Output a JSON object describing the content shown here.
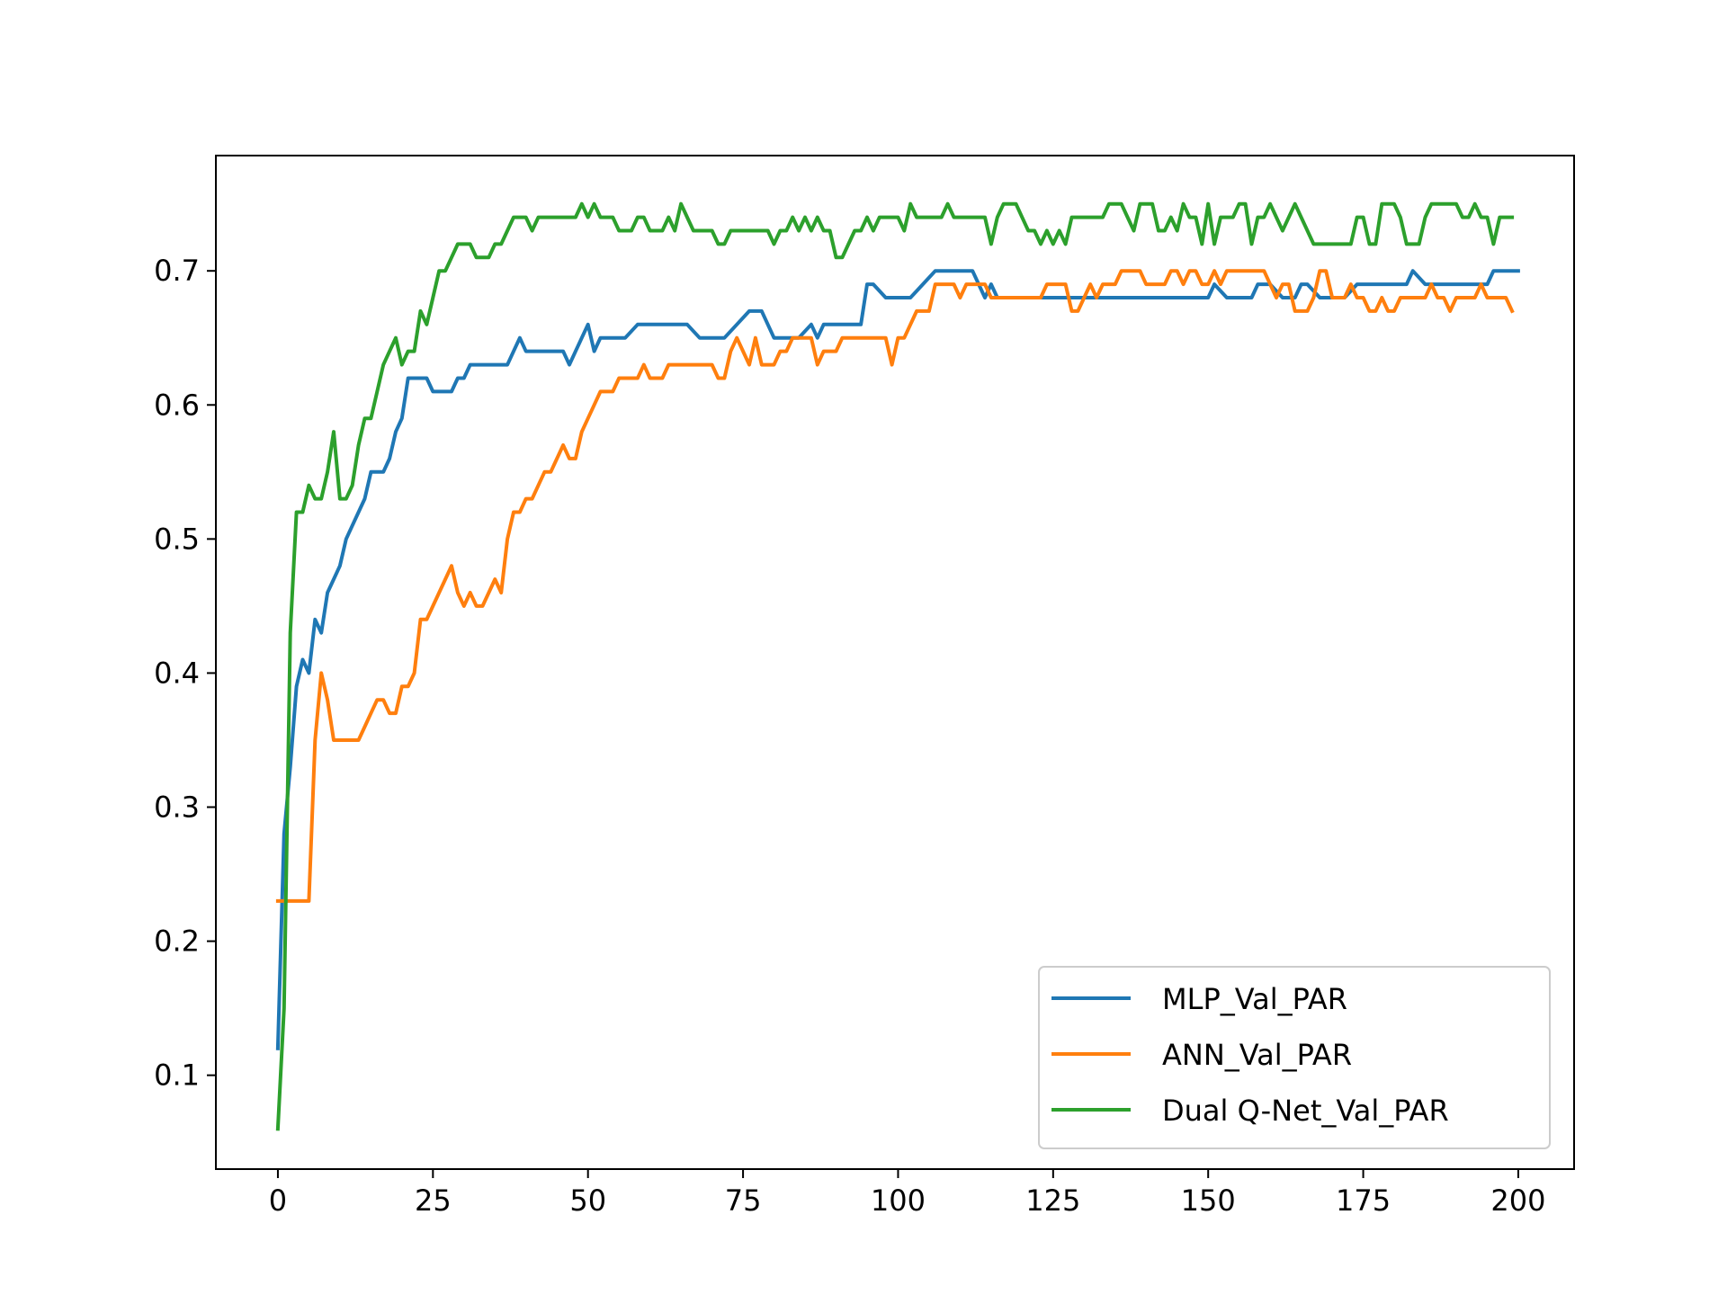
{
  "chart_data": {
    "type": "line",
    "title": "",
    "xlabel": "",
    "ylabel": "",
    "xlim": [
      -10,
      209
    ],
    "ylim": [
      0.03,
      0.786
    ],
    "xticks": [
      0,
      25,
      50,
      75,
      100,
      125,
      150,
      175,
      200
    ],
    "yticks": [
      0.1,
      0.2,
      0.3,
      0.4,
      0.5,
      0.6,
      0.7
    ],
    "grid": false,
    "legend_position": "lower-right",
    "series": [
      {
        "name": "MLP_Val_PAR",
        "color": "#1f77b4",
        "x": [
          0,
          1,
          2,
          3,
          4,
          5,
          6,
          7,
          8,
          9,
          10,
          11,
          12,
          13,
          14,
          15,
          16,
          17,
          18,
          19,
          20,
          21,
          22,
          23,
          24,
          25,
          26,
          27,
          28,
          29,
          30,
          31,
          32,
          33,
          34,
          35,
          36,
          37,
          38,
          39,
          40,
          42,
          44,
          46,
          47,
          48,
          49,
          50,
          51,
          52,
          54,
          56,
          58,
          60,
          62,
          64,
          66,
          68,
          70,
          72,
          74,
          76,
          78,
          80,
          82,
          84,
          86,
          87,
          88,
          90,
          92,
          94,
          95,
          96,
          98,
          100,
          102,
          104,
          106,
          108,
          110,
          112,
          113,
          114,
          115,
          116,
          118,
          120,
          125,
          130,
          135,
          140,
          145,
          150,
          151,
          153,
          155,
          157,
          158,
          160,
          162,
          164,
          165,
          166,
          168,
          170,
          172,
          174,
          176,
          178,
          180,
          182,
          183,
          185,
          190,
          195,
          196,
          200
        ],
        "y": [
          0.12,
          0.28,
          0.33,
          0.39,
          0.41,
          0.4,
          0.44,
          0.43,
          0.46,
          0.47,
          0.48,
          0.5,
          0.51,
          0.52,
          0.53,
          0.55,
          0.55,
          0.55,
          0.56,
          0.58,
          0.59,
          0.62,
          0.62,
          0.62,
          0.62,
          0.61,
          0.61,
          0.61,
          0.61,
          0.62,
          0.62,
          0.63,
          0.63,
          0.63,
          0.63,
          0.63,
          0.63,
          0.63,
          0.64,
          0.65,
          0.64,
          0.64,
          0.64,
          0.64,
          0.63,
          0.64,
          0.65,
          0.66,
          0.64,
          0.65,
          0.65,
          0.65,
          0.66,
          0.66,
          0.66,
          0.66,
          0.66,
          0.65,
          0.65,
          0.65,
          0.66,
          0.67,
          0.67,
          0.65,
          0.65,
          0.65,
          0.66,
          0.65,
          0.66,
          0.66,
          0.66,
          0.66,
          0.69,
          0.69,
          0.68,
          0.68,
          0.68,
          0.69,
          0.7,
          0.7,
          0.7,
          0.7,
          0.69,
          0.68,
          0.69,
          0.68,
          0.68,
          0.68,
          0.68,
          0.68,
          0.68,
          0.68,
          0.68,
          0.68,
          0.69,
          0.68,
          0.68,
          0.68,
          0.69,
          0.69,
          0.68,
          0.68,
          0.69,
          0.69,
          0.68,
          0.68,
          0.68,
          0.69,
          0.69,
          0.69,
          0.69,
          0.69,
          0.7,
          0.69,
          0.69,
          0.69,
          0.7,
          0.7
        ]
      },
      {
        "name": "ANN_Val_PAR",
        "color": "#ff7f0e",
        "x": [
          0,
          1,
          2,
          3,
          4,
          5,
          6,
          7,
          8,
          9,
          10,
          11,
          12,
          13,
          14,
          15,
          16,
          17,
          18,
          19,
          20,
          21,
          22,
          23,
          24,
          25,
          26,
          27,
          28,
          29,
          30,
          31,
          32,
          33,
          34,
          35,
          36,
          37,
          38,
          39,
          40,
          41,
          42,
          43,
          44,
          45,
          46,
          47,
          48,
          49,
          50,
          51,
          52,
          53,
          54,
          55,
          56,
          57,
          58,
          59,
          60,
          61,
          62,
          63,
          64,
          65,
          66,
          67,
          68,
          69,
          70,
          71,
          72,
          73,
          74,
          75,
          76,
          77,
          78,
          79,
          80,
          81,
          82,
          83,
          84,
          85,
          86,
          87,
          88,
          89,
          90,
          91,
          92,
          93,
          94,
          95,
          96,
          97,
          98,
          99,
          100,
          101,
          102,
          103,
          104,
          105,
          106,
          107,
          108,
          109,
          110,
          111,
          112,
          113,
          114,
          115,
          116,
          117,
          118,
          119,
          120,
          121,
          122,
          123,
          124,
          125,
          126,
          127,
          128,
          129,
          130,
          131,
          132,
          133,
          134,
          135,
          136,
          137,
          138,
          139,
          140,
          141,
          142,
          143,
          144,
          145,
          146,
          147,
          148,
          149,
          150,
          151,
          152,
          153,
          154,
          155,
          156,
          157,
          158,
          159,
          160,
          161,
          162,
          163,
          164,
          165,
          166,
          167,
          168,
          169,
          170,
          171,
          172,
          173,
          174,
          175,
          176,
          177,
          178,
          179,
          180,
          181,
          182,
          183,
          184,
          185,
          186,
          187,
          188,
          189,
          190,
          191,
          192,
          193,
          194,
          195,
          196,
          197,
          198,
          199
        ],
        "y": [
          0.23,
          0.23,
          0.23,
          0.23,
          0.23,
          0.23,
          0.35,
          0.4,
          0.38,
          0.35,
          0.35,
          0.35,
          0.35,
          0.35,
          0.36,
          0.37,
          0.38,
          0.38,
          0.37,
          0.37,
          0.39,
          0.39,
          0.4,
          0.44,
          0.44,
          0.45,
          0.46,
          0.47,
          0.48,
          0.46,
          0.45,
          0.46,
          0.45,
          0.45,
          0.46,
          0.47,
          0.46,
          0.5,
          0.52,
          0.52,
          0.53,
          0.53,
          0.54,
          0.55,
          0.55,
          0.56,
          0.57,
          0.56,
          0.56,
          0.58,
          0.59,
          0.6,
          0.61,
          0.61,
          0.61,
          0.62,
          0.62,
          0.62,
          0.62,
          0.63,
          0.62,
          0.62,
          0.62,
          0.63,
          0.63,
          0.63,
          0.63,
          0.63,
          0.63,
          0.63,
          0.63,
          0.62,
          0.62,
          0.64,
          0.65,
          0.64,
          0.63,
          0.65,
          0.63,
          0.63,
          0.63,
          0.64,
          0.64,
          0.65,
          0.65,
          0.65,
          0.65,
          0.63,
          0.64,
          0.64,
          0.64,
          0.65,
          0.65,
          0.65,
          0.65,
          0.65,
          0.65,
          0.65,
          0.65,
          0.63,
          0.65,
          0.65,
          0.66,
          0.67,
          0.67,
          0.67,
          0.69,
          0.69,
          0.69,
          0.69,
          0.68,
          0.69,
          0.69,
          0.69,
          0.69,
          0.68,
          0.68,
          0.68,
          0.68,
          0.68,
          0.68,
          0.68,
          0.68,
          0.68,
          0.69,
          0.69,
          0.69,
          0.69,
          0.67,
          0.67,
          0.68,
          0.69,
          0.68,
          0.69,
          0.69,
          0.69,
          0.7,
          0.7,
          0.7,
          0.7,
          0.69,
          0.69,
          0.69,
          0.69,
          0.7,
          0.7,
          0.69,
          0.7,
          0.7,
          0.69,
          0.69,
          0.7,
          0.69,
          0.7,
          0.7,
          0.7,
          0.7,
          0.7,
          0.7,
          0.7,
          0.69,
          0.68,
          0.69,
          0.69,
          0.67,
          0.67,
          0.67,
          0.68,
          0.7,
          0.7,
          0.68,
          0.68,
          0.68,
          0.69,
          0.68,
          0.68,
          0.67,
          0.67,
          0.68,
          0.67,
          0.67,
          0.68,
          0.68,
          0.68,
          0.68,
          0.68,
          0.69,
          0.68,
          0.68,
          0.67,
          0.68,
          0.68,
          0.68,
          0.68,
          0.69,
          0.68,
          0.68,
          0.68,
          0.68,
          0.67
        ]
      },
      {
        "name": "Dual Q-Net_Val_PAR",
        "color": "#2ca02c",
        "x": [
          0,
          1,
          2,
          3,
          4,
          5,
          6,
          7,
          8,
          9,
          10,
          11,
          12,
          13,
          14,
          15,
          16,
          17,
          18,
          19,
          20,
          21,
          22,
          23,
          24,
          25,
          26,
          27,
          28,
          29,
          30,
          31,
          32,
          33,
          34,
          35,
          36,
          37,
          38,
          39,
          40,
          41,
          42,
          43,
          44,
          45,
          46,
          47,
          48,
          49,
          50,
          51,
          52,
          53,
          54,
          55,
          56,
          57,
          58,
          59,
          60,
          61,
          62,
          63,
          64,
          65,
          66,
          67,
          68,
          69,
          70,
          71,
          72,
          73,
          74,
          75,
          76,
          77,
          78,
          79,
          80,
          81,
          82,
          83,
          84,
          85,
          86,
          87,
          88,
          89,
          90,
          91,
          92,
          93,
          94,
          95,
          96,
          97,
          98,
          99,
          100,
          101,
          102,
          103,
          104,
          105,
          106,
          107,
          108,
          109,
          110,
          111,
          112,
          113,
          114,
          115,
          116,
          117,
          118,
          119,
          120,
          121,
          122,
          123,
          124,
          125,
          126,
          127,
          128,
          129,
          130,
          131,
          132,
          133,
          134,
          135,
          136,
          137,
          138,
          139,
          140,
          141,
          142,
          143,
          144,
          145,
          146,
          147,
          148,
          149,
          150,
          151,
          152,
          153,
          154,
          155,
          156,
          157,
          158,
          159,
          160,
          161,
          162,
          163,
          164,
          165,
          166,
          167,
          168,
          169,
          170,
          171,
          172,
          173,
          174,
          175,
          176,
          177,
          178,
          179,
          180,
          181,
          182,
          183,
          184,
          185,
          186,
          187,
          188,
          189,
          190,
          191,
          192,
          193,
          194,
          195,
          196,
          197,
          198,
          199
        ],
        "y": [
          0.06,
          0.15,
          0.43,
          0.52,
          0.52,
          0.54,
          0.53,
          0.53,
          0.55,
          0.58,
          0.53,
          0.53,
          0.54,
          0.57,
          0.59,
          0.59,
          0.61,
          0.63,
          0.64,
          0.65,
          0.63,
          0.64,
          0.64,
          0.67,
          0.66,
          0.68,
          0.7,
          0.7,
          0.71,
          0.72,
          0.72,
          0.72,
          0.71,
          0.71,
          0.71,
          0.72,
          0.72,
          0.73,
          0.74,
          0.74,
          0.74,
          0.73,
          0.74,
          0.74,
          0.74,
          0.74,
          0.74,
          0.74,
          0.74,
          0.75,
          0.74,
          0.75,
          0.74,
          0.74,
          0.74,
          0.73,
          0.73,
          0.73,
          0.74,
          0.74,
          0.73,
          0.73,
          0.73,
          0.74,
          0.73,
          0.75,
          0.74,
          0.73,
          0.73,
          0.73,
          0.73,
          0.72,
          0.72,
          0.73,
          0.73,
          0.73,
          0.73,
          0.73,
          0.73,
          0.73,
          0.72,
          0.73,
          0.73,
          0.74,
          0.73,
          0.74,
          0.73,
          0.74,
          0.73,
          0.73,
          0.71,
          0.71,
          0.72,
          0.73,
          0.73,
          0.74,
          0.73,
          0.74,
          0.74,
          0.74,
          0.74,
          0.73,
          0.75,
          0.74,
          0.74,
          0.74,
          0.74,
          0.74,
          0.75,
          0.74,
          0.74,
          0.74,
          0.74,
          0.74,
          0.74,
          0.72,
          0.74,
          0.75,
          0.75,
          0.75,
          0.74,
          0.73,
          0.73,
          0.72,
          0.73,
          0.72,
          0.73,
          0.72,
          0.74,
          0.74,
          0.74,
          0.74,
          0.74,
          0.74,
          0.75,
          0.75,
          0.75,
          0.74,
          0.73,
          0.75,
          0.75,
          0.75,
          0.73,
          0.73,
          0.74,
          0.73,
          0.75,
          0.74,
          0.74,
          0.72,
          0.75,
          0.72,
          0.74,
          0.74,
          0.74,
          0.75,
          0.75,
          0.72,
          0.74,
          0.74,
          0.75,
          0.74,
          0.73,
          0.74,
          0.75,
          0.74,
          0.73,
          0.72,
          0.72,
          0.72,
          0.72,
          0.72,
          0.72,
          0.72,
          0.74,
          0.74,
          0.72,
          0.72,
          0.75,
          0.75,
          0.75,
          0.74,
          0.72,
          0.72,
          0.72,
          0.74,
          0.75,
          0.75,
          0.75,
          0.75,
          0.75,
          0.74,
          0.74,
          0.75,
          0.74,
          0.74,
          0.72,
          0.74,
          0.74,
          0.74
        ]
      }
    ]
  }
}
